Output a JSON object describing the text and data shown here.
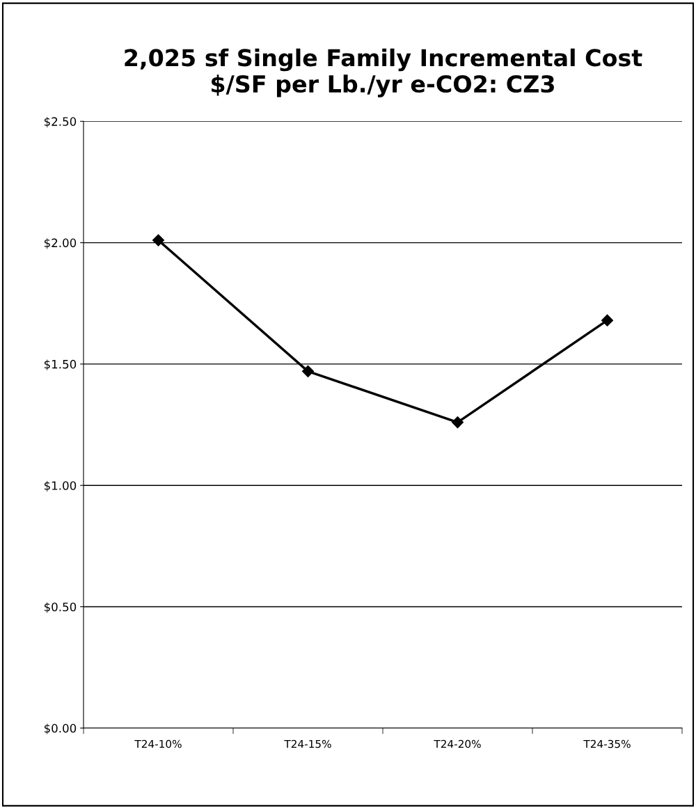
{
  "chart_data": {
    "type": "line",
    "title": "2,025 sf Single Family Incremental Cost\n$/SF per Lb./yr e-CO2: CZ3",
    "categories": [
      "T24-10%",
      "T24-15%",
      "T24-20%",
      "T24-35%"
    ],
    "series": [
      {
        "color": "#000000",
        "values": [
          2.01,
          1.47,
          1.26,
          1.68
        ]
      }
    ],
    "ylim": [
      0,
      2.5
    ],
    "yticks": [
      {
        "value": 0,
        "label": "$0.00"
      },
      {
        "value": 0.5,
        "label": "$0.50"
      },
      {
        "value": 1,
        "label": "$1.00"
      },
      {
        "value": 1.5,
        "label": "$1.50"
      },
      {
        "value": 2,
        "label": "$2.00"
      },
      {
        "value": 2.5,
        "label": "$2.50"
      }
    ],
    "grid": "y",
    "marker": "diamond",
    "line_style": "solid",
    "legend": false
  }
}
